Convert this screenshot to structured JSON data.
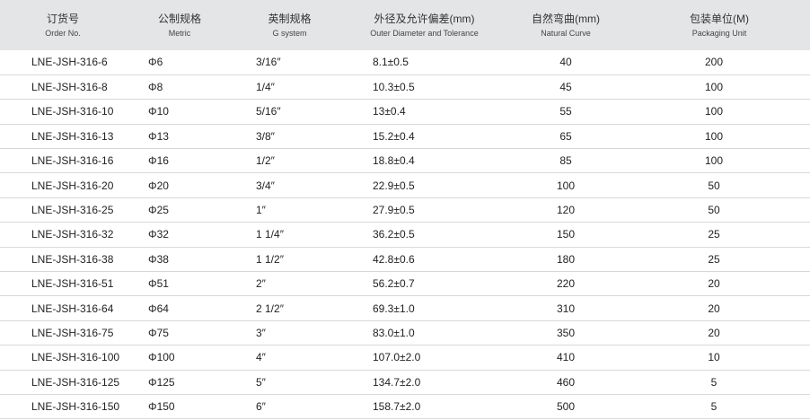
{
  "table": {
    "headers": [
      {
        "zh": "订货号",
        "en": "Order No."
      },
      {
        "zh": "公制规格",
        "en": "Metric"
      },
      {
        "zh": "英制规格",
        "en": "G system"
      },
      {
        "zh": "外径及允许偏差(mm)",
        "en": "Outer Diameter and Tolerance"
      },
      {
        "zh": "自然弯曲(mm)",
        "en": "Natural Curve"
      },
      {
        "zh": "包装单位(M)",
        "en": "Packaging Unit"
      }
    ],
    "rows": [
      [
        "LNE-JSH-316-6",
        "Φ6",
        "3/16″",
        "8.1±0.5",
        "40",
        "200"
      ],
      [
        "LNE-JSH-316-8",
        "Φ8",
        "1/4″",
        "10.3±0.5",
        "45",
        "100"
      ],
      [
        "LNE-JSH-316-10",
        "Φ10",
        "5/16″",
        "13±0.4",
        "55",
        "100"
      ],
      [
        "LNE-JSH-316-13",
        "Φ13",
        "3/8″",
        "15.2±0.4",
        "65",
        "100"
      ],
      [
        "LNE-JSH-316-16",
        "Φ16",
        "1/2″",
        "18.8±0.4",
        "85",
        "100"
      ],
      [
        "LNE-JSH-316-20",
        "Φ20",
        "3/4″",
        "22.9±0.5",
        "100",
        "50"
      ],
      [
        "LNE-JSH-316-25",
        "Φ25",
        "1″",
        "27.9±0.5",
        "120",
        "50"
      ],
      [
        "LNE-JSH-316-32",
        "Φ32",
        "1 1/4″",
        "36.2±0.5",
        "150",
        "25"
      ],
      [
        "LNE-JSH-316-38",
        "Φ38",
        "1 1/2″",
        "42.8±0.6",
        "180",
        "25"
      ],
      [
        "LNE-JSH-316-51",
        "Φ51",
        "2″",
        "56.2±0.7",
        "220",
        "20"
      ],
      [
        "LNE-JSH-316-64",
        "Φ64",
        "2 1/2″",
        "69.3±1.0",
        "310",
        "20"
      ],
      [
        "LNE-JSH-316-75",
        "Φ75",
        "3″",
        "83.0±1.0",
        "350",
        "20"
      ],
      [
        "LNE-JSH-316-100",
        "Φ100",
        "4″",
        "107.0±2.0",
        "410",
        "10"
      ],
      [
        "LNE-JSH-316-125",
        "Φ125",
        "5″",
        "134.7±2.0",
        "460",
        "5"
      ],
      [
        "LNE-JSH-316-150",
        "Φ150",
        "6″",
        "158.7±2.0",
        "500",
        "5"
      ]
    ]
  }
}
